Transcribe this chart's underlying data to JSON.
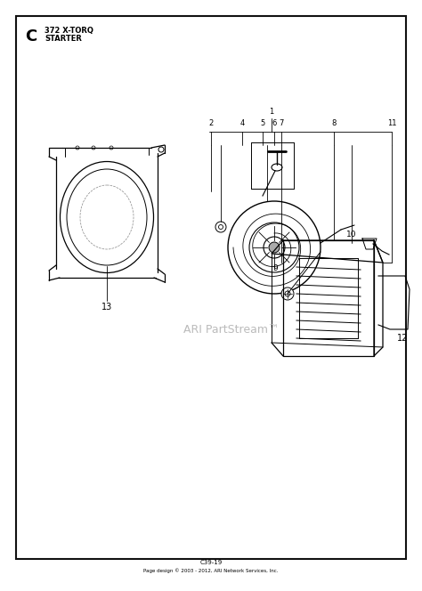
{
  "title": "C",
  "subtitle_line1": "372 X-TORQ",
  "subtitle_line2": "STARTER",
  "bg_color": "#ffffff",
  "border_color": "#111111",
  "watermark": "ARI PartStream™",
  "watermark_color": "#bbbbbb",
  "footer_line1": "C39-19",
  "footer_line2": "Page design © 2003 - 2012, ARI Network Services, Inc."
}
